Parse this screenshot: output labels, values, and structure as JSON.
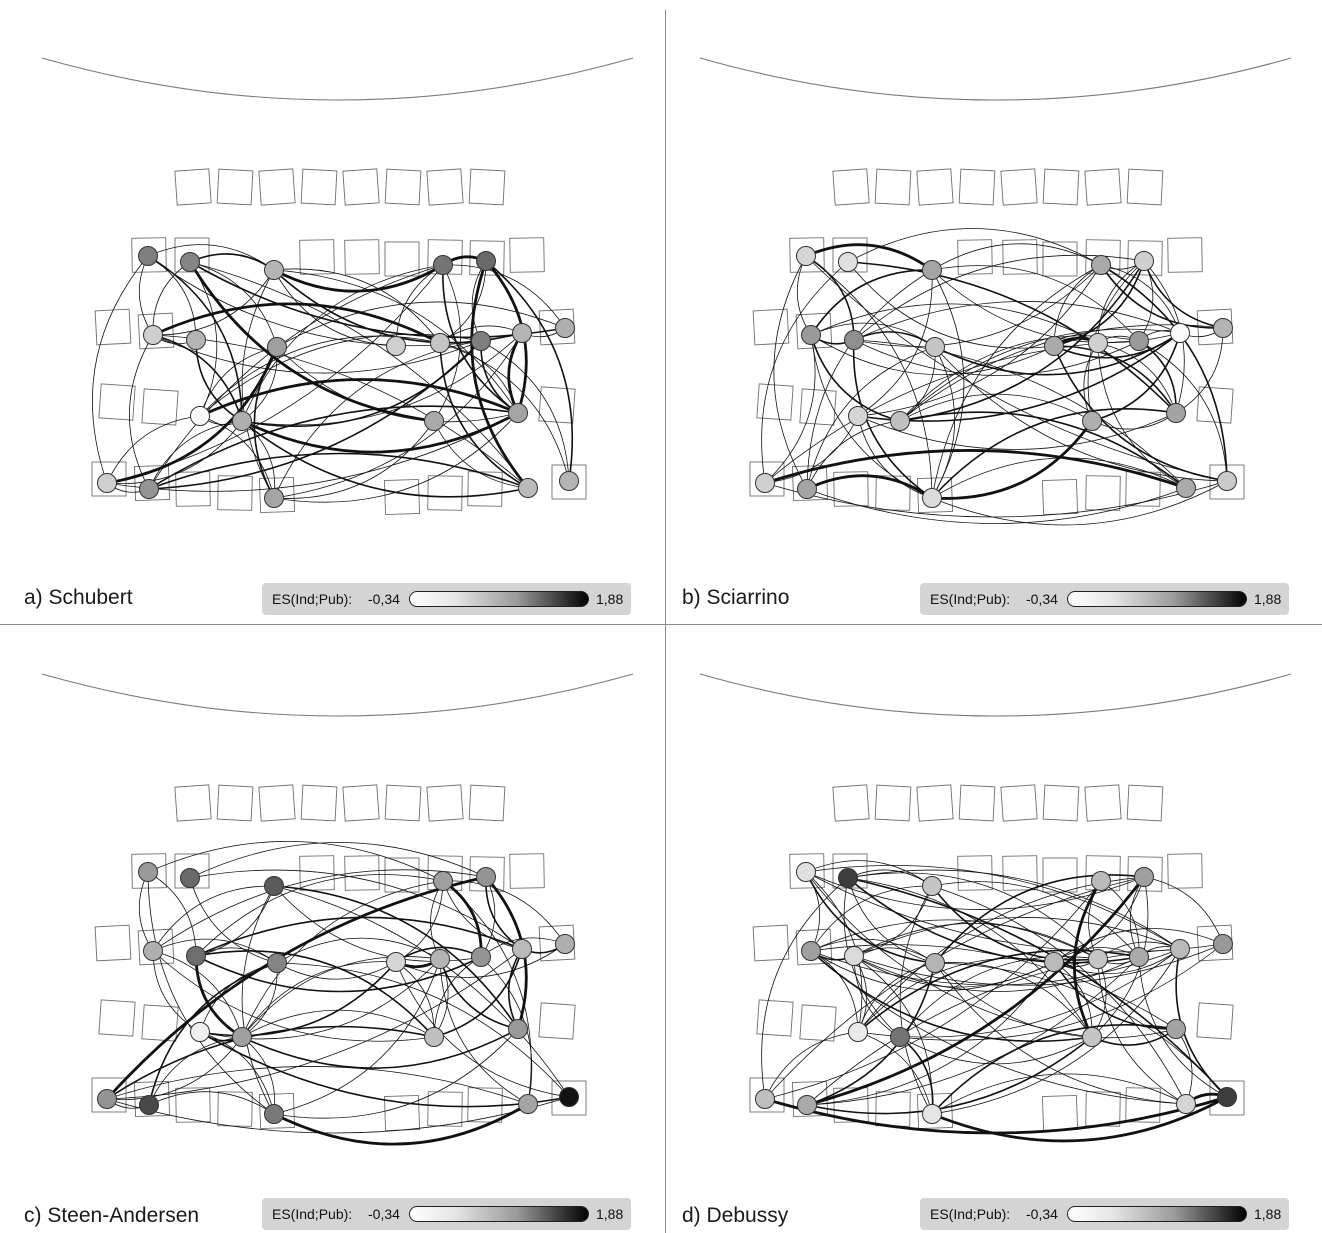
{
  "legend": {
    "label": "ES(Ind;Pub):",
    "min_label": "-0,34",
    "max_label": "1,88",
    "min": -0.34,
    "max": 1.88,
    "colors": {
      "low": "#ffffff",
      "high": "#000000"
    }
  },
  "panels": [
    {
      "caption": "a) Schubert",
      "node_values": [
        0.85,
        0.8,
        0.35,
        0.95,
        1.05,
        0.1,
        0.35,
        0.55,
        0.1,
        0.2,
        0.85,
        0.35,
        0.4,
        -0.3,
        0.4,
        0.45,
        0.5,
        0.1,
        0.65,
        0.5,
        0.3,
        0.35
      ]
    },
    {
      "caption": "b) Sciarrino",
      "node_values": [
        0.05,
        -0.05,
        0.5,
        0.45,
        0.1,
        0.6,
        0.7,
        0.2,
        0.45,
        0.1,
        0.6,
        -0.3,
        0.35,
        0.05,
        0.25,
        0.4,
        0.5,
        0.1,
        0.5,
        0.0,
        0.45,
        0.15
      ]
    },
    {
      "caption": "c) Steen-Andersen",
      "node_values": [
        0.6,
        1.05,
        1.2,
        0.55,
        0.65,
        0.4,
        1.0,
        0.8,
        0.05,
        0.35,
        0.65,
        0.3,
        0.4,
        -0.2,
        0.55,
        0.25,
        0.6,
        0.65,
        1.35,
        0.9,
        0.5,
        1.85
      ]
    },
    {
      "caption": "d) Debussy",
      "node_values": [
        -0.05,
        1.45,
        0.2,
        0.3,
        0.55,
        0.55,
        0.0,
        0.35,
        0.3,
        0.2,
        0.45,
        0.3,
        0.6,
        -0.15,
        0.95,
        0.2,
        0.5,
        0.25,
        0.45,
        -0.1,
        0.05,
        1.45
      ]
    }
  ]
}
